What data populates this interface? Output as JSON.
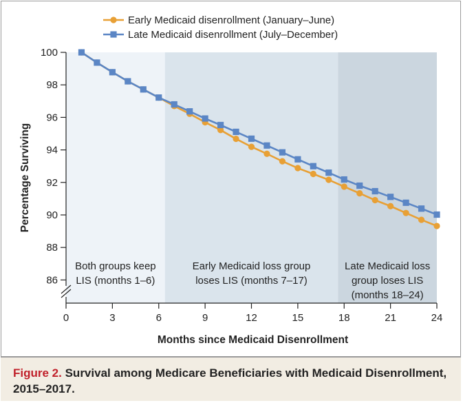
{
  "caption": {
    "figure_label": "Figure 2.",
    "text": "Survival among Medicare Beneficiaries with Medicaid Disenrollment, 2015–2017."
  },
  "colors": {
    "early": "#e8a035",
    "late": "#5b86c5",
    "region1": "#eef3f8",
    "region2": "#dae4ec",
    "region3": "#cbd6df",
    "accent": "#c0202a"
  },
  "chart_data": {
    "type": "line",
    "title": "Survival among Medicare Beneficiaries with Medicaid Disenrollment, 2015–2017",
    "xlabel": "Months since Medicaid Disenrollment",
    "ylabel": "Percentage Surviving",
    "xlim": [
      0,
      24
    ],
    "ylim": [
      86,
      100
    ],
    "axis_break": true,
    "xticks": [
      0,
      3,
      6,
      9,
      12,
      15,
      18,
      21,
      24
    ],
    "yticks": [
      86,
      88,
      90,
      92,
      94,
      96,
      98,
      100
    ],
    "legend_position": "top",
    "series": [
      {
        "name": "Early Medicaid disenrollment (January–June)",
        "color": "#e8a035",
        "marker": "circle",
        "x": [
          1,
          2,
          3,
          4,
          5,
          6,
          7,
          8,
          9,
          10,
          11,
          12,
          13,
          14,
          15,
          16,
          17,
          18,
          19,
          20,
          21,
          22,
          23,
          24
        ],
        "values": [
          100.0,
          99.37,
          98.78,
          98.22,
          97.72,
          97.22,
          96.7,
          96.22,
          95.7,
          95.22,
          94.68,
          94.19,
          93.76,
          93.3,
          92.88,
          92.52,
          92.16,
          91.74,
          91.33,
          90.91,
          90.54,
          90.12,
          89.7,
          89.32
        ]
      },
      {
        "name": "Late Medicaid disenrollment (July–December)",
        "color": "#5b86c5",
        "marker": "square",
        "x": [
          1,
          2,
          3,
          4,
          5,
          6,
          7,
          8,
          9,
          10,
          11,
          12,
          13,
          14,
          15,
          16,
          17,
          18,
          19,
          20,
          21,
          22,
          23,
          24
        ],
        "values": [
          100.0,
          99.37,
          98.78,
          98.22,
          97.72,
          97.22,
          96.8,
          96.37,
          95.93,
          95.53,
          95.11,
          94.69,
          94.27,
          93.85,
          93.42,
          93.0,
          92.6,
          92.18,
          91.8,
          91.46,
          91.11,
          90.75,
          90.39,
          90.02
        ]
      }
    ],
    "regions": [
      {
        "x_start": 0,
        "x_end": 6.4,
        "lines": [
          "Both groups keep",
          "LIS (months 1–6)"
        ]
      },
      {
        "x_start": 6.4,
        "x_end": 17.6,
        "lines": [
          "Early Medicaid loss group",
          "loses LIS (months 7–17)"
        ]
      },
      {
        "x_start": 17.6,
        "x_end": 24,
        "lines": [
          "Late Medicaid loss",
          "group loses LIS",
          "(months 18–24)"
        ]
      }
    ]
  }
}
